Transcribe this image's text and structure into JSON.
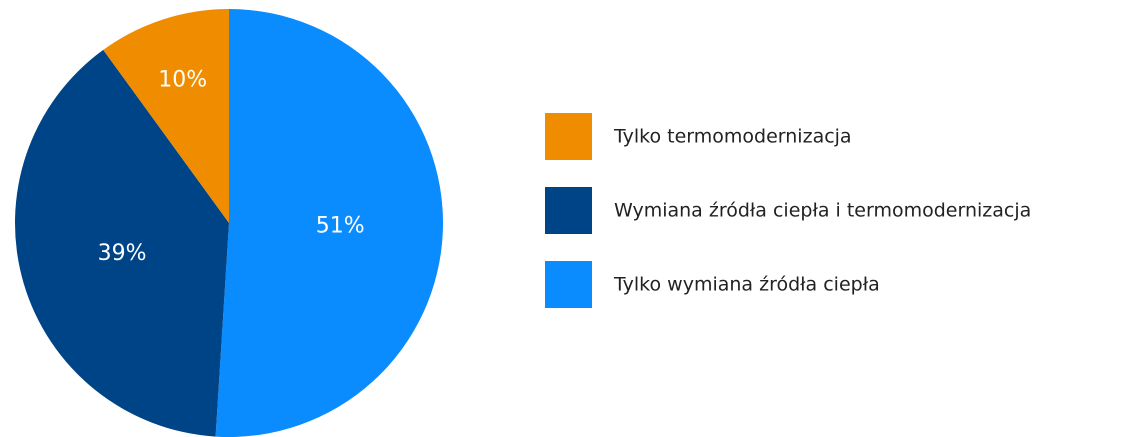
{
  "chart_data": {
    "type": "pie",
    "categories": [
      "Tylko termomodernizacja",
      "Wymiana źródła ciepła i termomodernizacja",
      "Tylko wymiana źródła ciepła"
    ],
    "values": [
      10,
      39,
      51
    ],
    "value_labels": [
      "10%",
      "39%",
      "51%"
    ],
    "colors": [
      "#f08c00",
      "#004488",
      "#0a8cff"
    ],
    "legend": "right"
  }
}
